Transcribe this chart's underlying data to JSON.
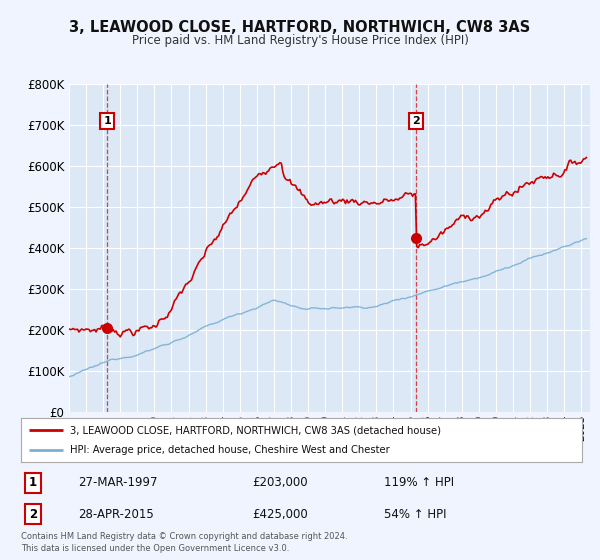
{
  "title": "3, LEAWOOD CLOSE, HARTFORD, NORTHWICH, CW8 3AS",
  "subtitle": "Price paid vs. HM Land Registry's House Price Index (HPI)",
  "hpi_color": "#7ab0d4",
  "price_color": "#cc0000",
  "background_color": "#f0f4ff",
  "plot_bg_color": "#dce8f5",
  "grid_color": "#ffffff",
  "ylim": [
    0,
    800000
  ],
  "yticks": [
    0,
    100000,
    200000,
    300000,
    400000,
    500000,
    600000,
    700000,
    800000
  ],
  "ytick_labels": [
    "£0",
    "£100K",
    "£200K",
    "£300K",
    "£400K",
    "£500K",
    "£600K",
    "£700K",
    "£800K"
  ],
  "xlim_start": 1995.0,
  "xlim_end": 2025.5,
  "sale1_date": 1997.23,
  "sale1_price": 203000,
  "sale1_label": "1",
  "sale2_date": 2015.32,
  "sale2_price": 425000,
  "sale2_label": "2",
  "legend_line1": "3, LEAWOOD CLOSE, HARTFORD, NORTHWICH, CW8 3AS (detached house)",
  "legend_line2": "HPI: Average price, detached house, Cheshire West and Chester",
  "table_row1_date": "27-MAR-1997",
  "table_row1_price": "£203,000",
  "table_row1_hpi": "119% ↑ HPI",
  "table_row2_date": "28-APR-2015",
  "table_row2_price": "£425,000",
  "table_row2_hpi": "54% ↑ HPI",
  "footer": "Contains HM Land Registry data © Crown copyright and database right 2024.\nThis data is licensed under the Open Government Licence v3.0."
}
